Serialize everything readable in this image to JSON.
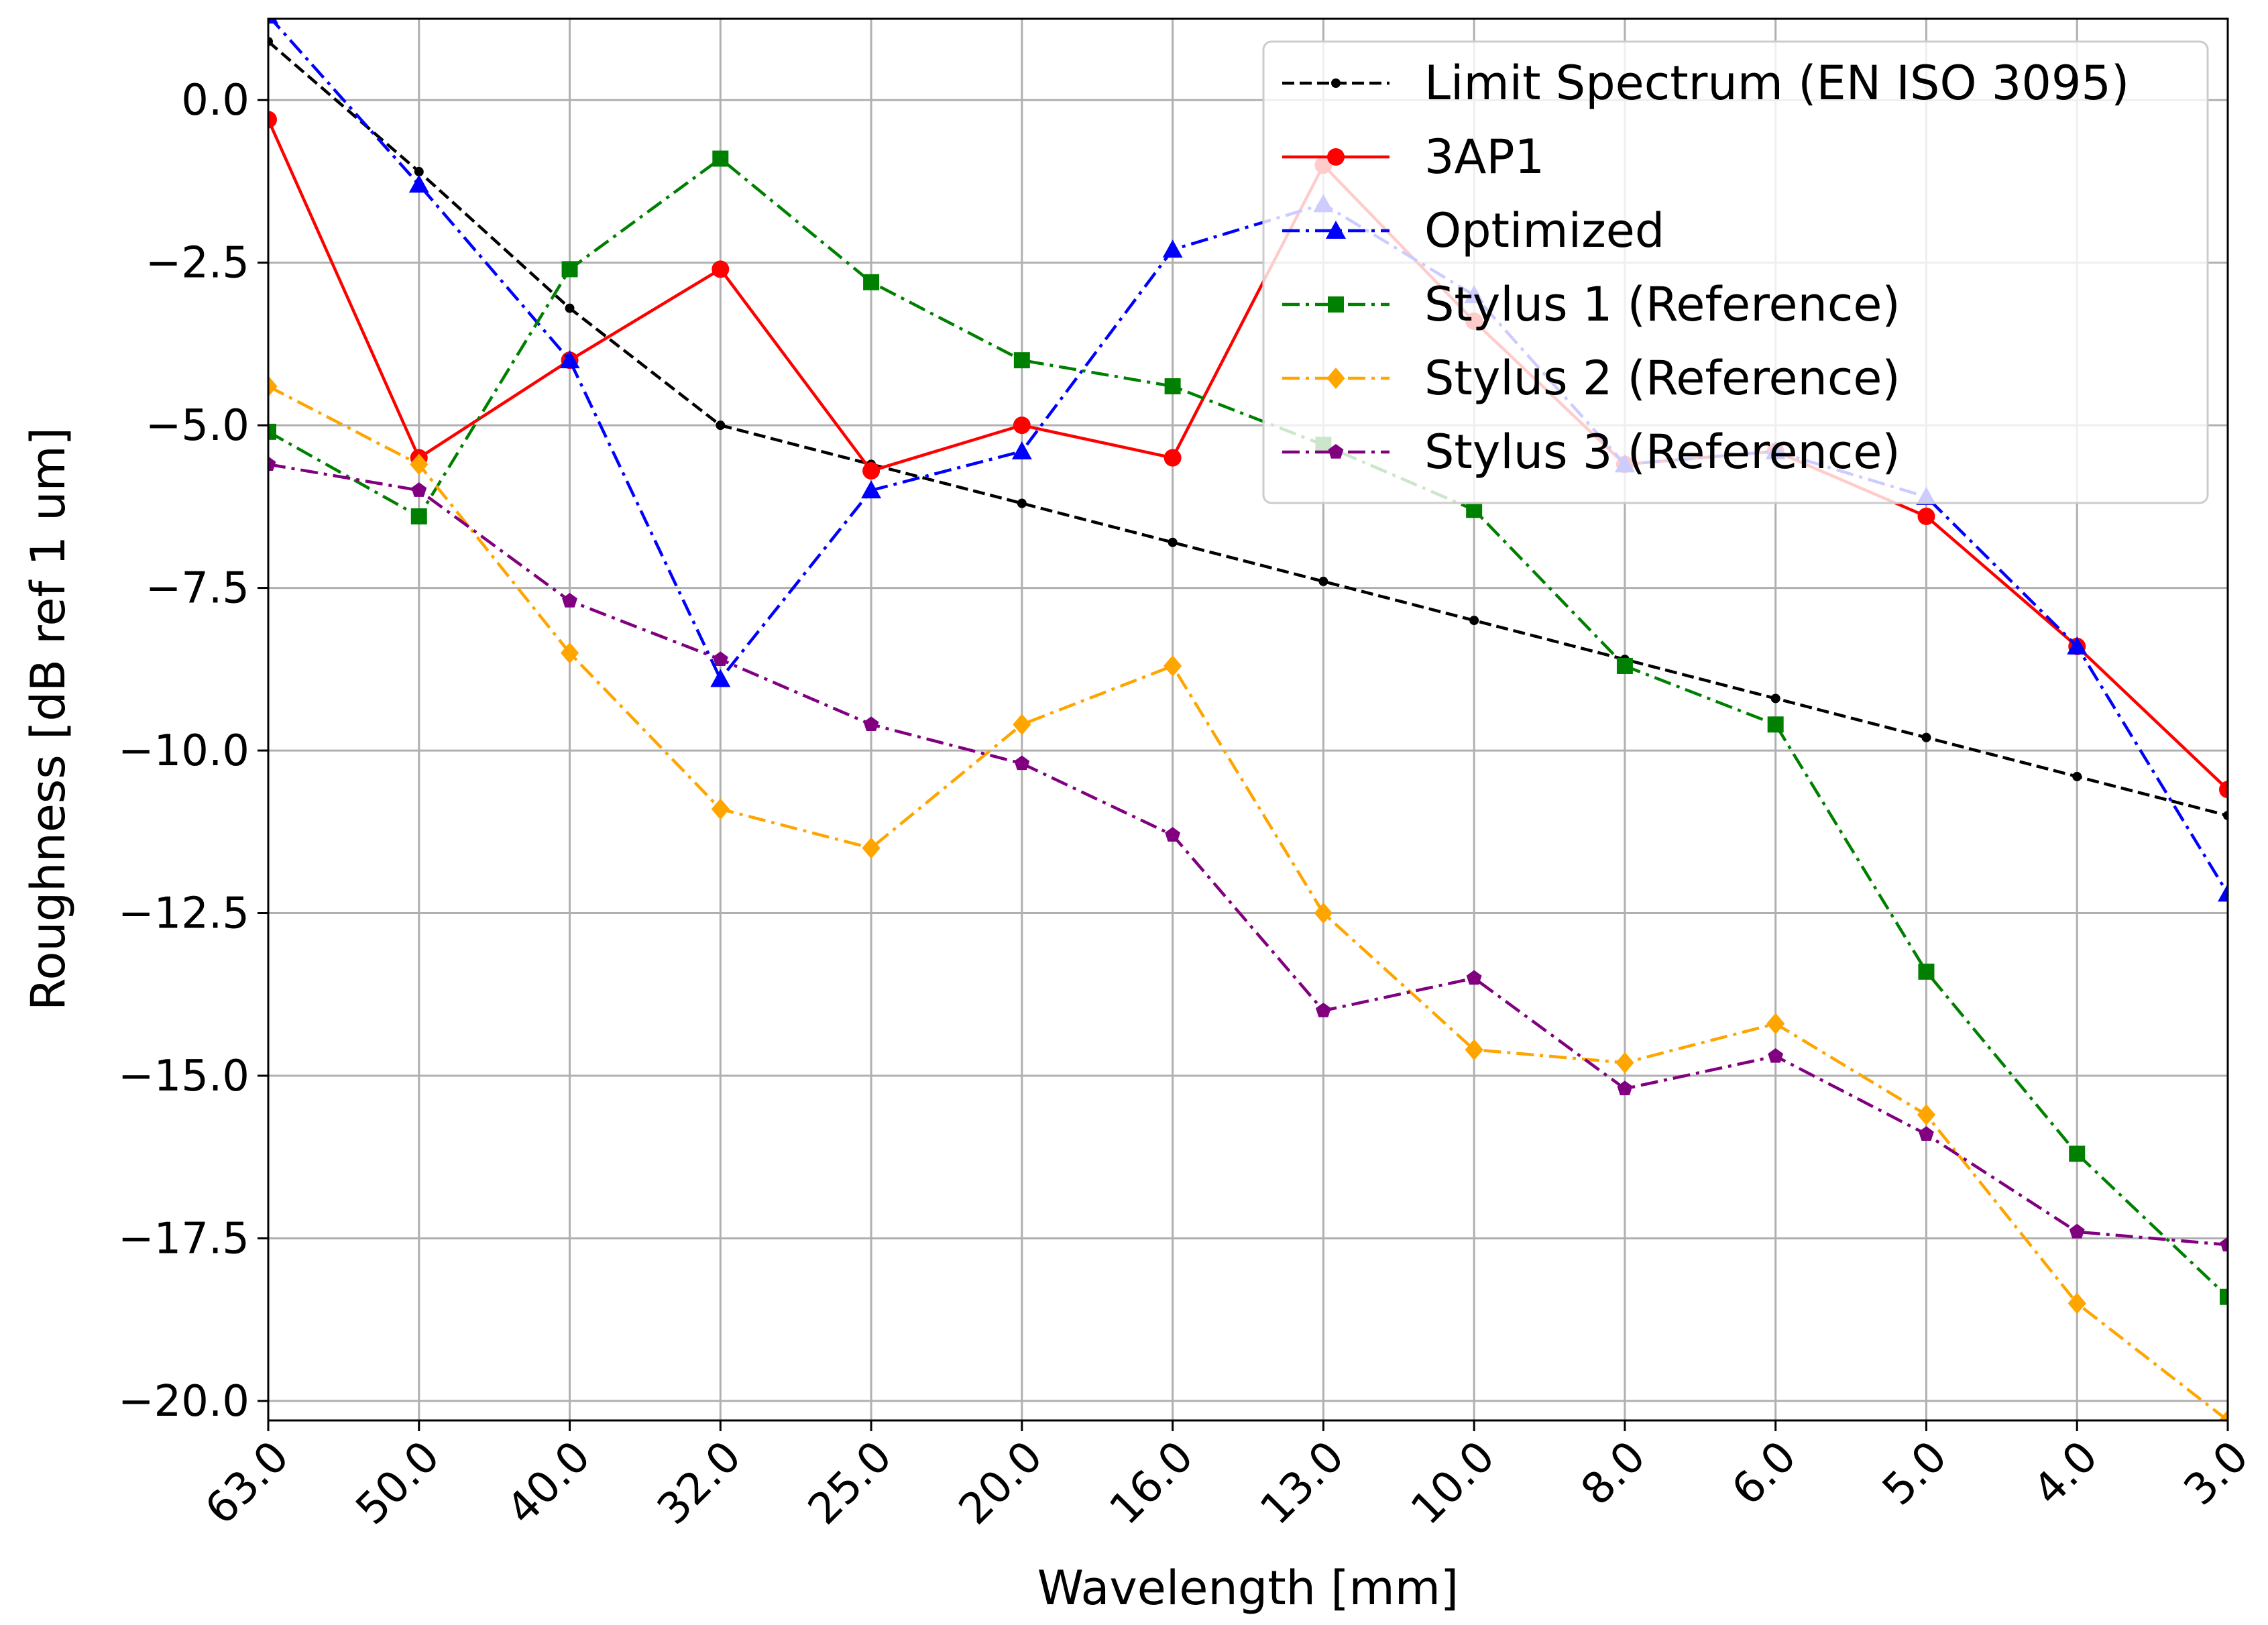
{
  "chart_data": {
    "type": "line",
    "title": "",
    "xlabel": "Wavelength [mm]",
    "ylabel": "Roughness [dB ref 1 um]",
    "categories": [
      "63.0",
      "50.0",
      "40.0",
      "32.0",
      "25.0",
      "20.0",
      "16.0",
      "13.0",
      "10.0",
      "8.0",
      "6.0",
      "5.0",
      "4.0",
      "3.0"
    ],
    "ylim": [
      -20.3,
      1.25
    ],
    "yticks": [
      0.0,
      -2.5,
      -5.0,
      -7.5,
      -10.0,
      -12.5,
      -15.0,
      -17.5,
      -20.0
    ],
    "ytick_labels": [
      "0.0",
      "−2.5",
      "−5.0",
      "−7.5",
      "−10.0",
      "−12.5",
      "−15.0",
      "−17.5",
      "−20.0"
    ],
    "grid": true,
    "legend_position": "top-right",
    "series": [
      {
        "name": "Limit Spectrum (EN ISO 3095)",
        "color": "#000000",
        "linestyle": "dashed",
        "marker": "dot",
        "values": [
          0.9,
          -1.1,
          -3.2,
          -5.0,
          -5.6,
          -6.2,
          -6.8,
          -7.4,
          -8.0,
          -8.6,
          -9.2,
          -9.8,
          -10.4,
          -11.0
        ]
      },
      {
        "name": "3AP1",
        "color": "#ff0000",
        "linestyle": "solid",
        "marker": "circle",
        "values": [
          -0.3,
          -5.5,
          -4.0,
          -2.6,
          -5.7,
          -5.0,
          -5.5,
          -1.0,
          -3.4,
          -5.6,
          -5.4,
          -6.4,
          -8.4,
          -10.6
        ]
      },
      {
        "name": "Optimized",
        "color": "#0000ff",
        "linestyle": "dashdot",
        "marker": "triangle",
        "values": [
          1.3,
          -1.3,
          -4.0,
          -8.9,
          -6.0,
          -5.4,
          -2.3,
          -1.6,
          -3.0,
          -5.6,
          -5.4,
          -6.1,
          -8.4,
          -12.2
        ]
      },
      {
        "name": "Stylus 1 (Reference)",
        "color": "#008000",
        "linestyle": "dashdot",
        "marker": "square",
        "values": [
          -5.1,
          -6.4,
          -2.6,
          -0.9,
          -2.8,
          -4.0,
          -4.4,
          -5.3,
          -6.3,
          -8.7,
          -9.6,
          -13.4,
          -16.2,
          -18.4
        ]
      },
      {
        "name": "Stylus 2 (Reference)",
        "color": "#ffa500",
        "linestyle": "dashdot",
        "marker": "diamond",
        "values": [
          -4.4,
          -5.6,
          -8.5,
          -10.9,
          -11.5,
          -9.6,
          -8.7,
          -12.5,
          -14.6,
          -14.8,
          -14.2,
          -15.6,
          -18.5,
          -20.3
        ]
      },
      {
        "name": "Stylus 3 (Reference)",
        "color": "#800080",
        "linestyle": "dashdot",
        "marker": "pentagon",
        "values": [
          -5.6,
          -6.0,
          -7.7,
          -8.6,
          -9.6,
          -10.2,
          -11.3,
          -14.0,
          -13.5,
          -15.2,
          -14.7,
          -15.9,
          -17.4,
          -17.6
        ]
      }
    ]
  }
}
